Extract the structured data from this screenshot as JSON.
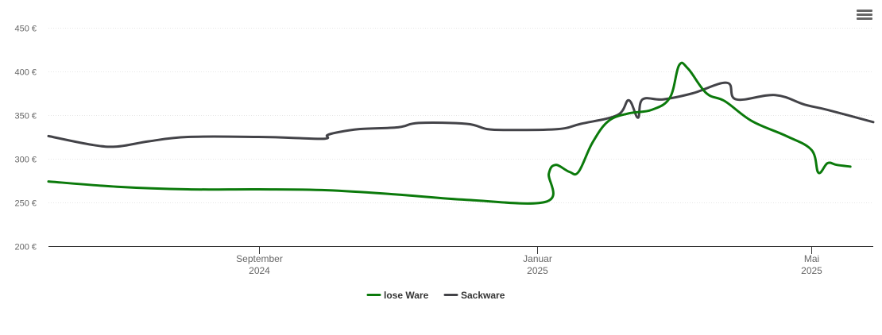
{
  "menu": {
    "icon": "hamburger-menu-icon"
  },
  "chart_data": {
    "type": "line",
    "title": "",
    "xlabel": "",
    "ylabel": "",
    "ylim": [
      200,
      450
    ],
    "xlim": [
      "2024-06-01",
      "2025-05-28"
    ],
    "grid": true,
    "legend_position": "bottom-center",
    "y_ticks": [
      "200 €",
      "250 €",
      "300 €",
      "350 €",
      "400 €",
      "450 €"
    ],
    "y_tick_values": [
      200,
      250,
      300,
      350,
      400,
      450
    ],
    "x_ticks": [
      {
        "date": "2024-09-01",
        "line1": "September",
        "line2": "2024"
      },
      {
        "date": "2025-01-01",
        "line1": "Januar",
        "line2": "2025"
      },
      {
        "date": "2025-05-01",
        "line1": "Mai",
        "line2": "2025"
      }
    ],
    "series": [
      {
        "name": "lose Ware",
        "color": "#0b7a0b",
        "points": [
          [
            "2024-06-01",
            274
          ],
          [
            "2024-07-01",
            268
          ],
          [
            "2024-08-01",
            265
          ],
          [
            "2024-09-01",
            265
          ],
          [
            "2024-10-01",
            264
          ],
          [
            "2024-11-01",
            259
          ],
          [
            "2024-12-01",
            253
          ],
          [
            "2025-01-05",
            251
          ],
          [
            "2025-01-06",
            283
          ],
          [
            "2025-01-09",
            293
          ],
          [
            "2025-01-15",
            285
          ],
          [
            "2025-01-19",
            285
          ],
          [
            "2025-01-25",
            318
          ],
          [
            "2025-02-01",
            343
          ],
          [
            "2025-02-10",
            352
          ],
          [
            "2025-02-20",
            356
          ],
          [
            "2025-02-28",
            370
          ],
          [
            "2025-03-04",
            407
          ],
          [
            "2025-03-08",
            403
          ],
          [
            "2025-03-16",
            375
          ],
          [
            "2025-03-24",
            366
          ],
          [
            "2025-04-05",
            343
          ],
          [
            "2025-04-20",
            326
          ],
          [
            "2025-05-01",
            310
          ],
          [
            "2025-05-04",
            284
          ],
          [
            "2025-05-08",
            295
          ],
          [
            "2025-05-12",
            293
          ],
          [
            "2025-05-18",
            291
          ]
        ]
      },
      {
        "name": "Sackware",
        "color": "#434348",
        "points": [
          [
            "2024-06-01",
            326
          ],
          [
            "2024-06-20",
            316
          ],
          [
            "2024-07-01",
            314
          ],
          [
            "2024-07-15",
            320
          ],
          [
            "2024-08-01",
            325
          ],
          [
            "2024-09-01",
            325
          ],
          [
            "2024-09-15",
            324
          ],
          [
            "2024-09-30",
            323
          ],
          [
            "2024-10-01",
            327
          ],
          [
            "2024-10-05",
            330
          ],
          [
            "2024-10-15",
            334
          ],
          [
            "2024-11-01",
            336
          ],
          [
            "2024-11-10",
            341
          ],
          [
            "2024-12-01",
            340
          ],
          [
            "2024-12-10",
            334
          ],
          [
            "2024-12-20",
            333
          ],
          [
            "2025-01-10",
            334
          ],
          [
            "2025-01-20",
            340
          ],
          [
            "2025-02-05",
            350
          ],
          [
            "2025-02-10",
            367
          ],
          [
            "2025-02-14",
            347
          ],
          [
            "2025-02-16",
            368
          ],
          [
            "2025-02-25",
            368
          ],
          [
            "2025-03-10",
            375
          ],
          [
            "2025-03-25",
            387
          ],
          [
            "2025-03-29",
            368
          ],
          [
            "2025-04-15",
            373
          ],
          [
            "2025-04-28",
            362
          ],
          [
            "2025-05-08",
            356
          ],
          [
            "2025-05-28",
            342
          ]
        ]
      }
    ]
  }
}
